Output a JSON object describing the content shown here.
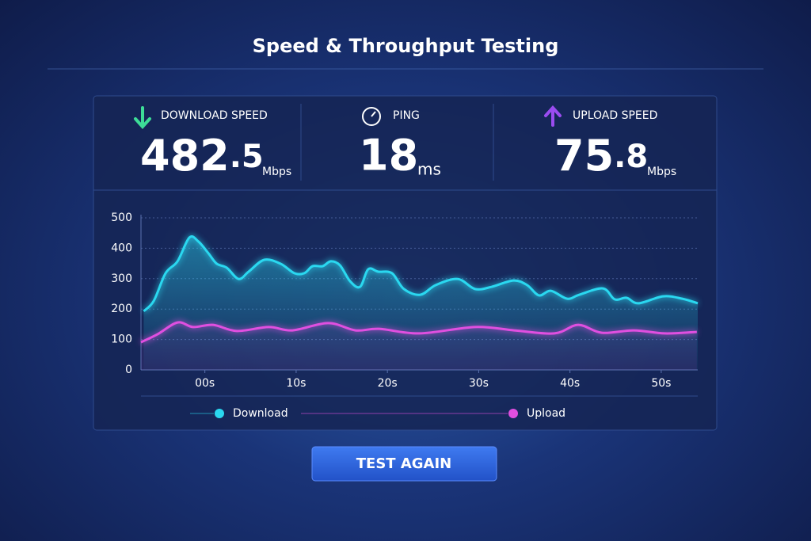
{
  "header": {
    "title": "Speed & Throughput Testing"
  },
  "stats": [
    {
      "label": "DOWNLOAD SPEED",
      "value": "482",
      "fraction": ".5",
      "unit": "Mbps"
    },
    {
      "label": "PING",
      "value": "18",
      "unit": "ms"
    },
    {
      "label": "UPLOAD SPEED",
      "value": "75",
      "fraction": ".8",
      "unit": "Mbps"
    }
  ],
  "chart_data": {
    "type": "line",
    "xlim": [
      -7,
      54
    ],
    "xticks": [
      {
        "value": 0,
        "label": "00s"
      },
      {
        "value": 10,
        "label": "10s"
      },
      {
        "value": 20,
        "label": "20s"
      },
      {
        "value": 30,
        "label": "30s"
      },
      {
        "value": 40,
        "label": "40s"
      },
      {
        "value": 50,
        "label": "50s"
      }
    ],
    "ylim": [
      0,
      500
    ],
    "yticks": [
      0,
      100,
      200,
      300,
      400,
      500
    ],
    "grid": true,
    "series": [
      {
        "name": "Download",
        "color": "#2ad8f0",
        "x": [
          -6.7,
          -5.6,
          -4.3,
          -3.0,
          -1.7,
          -0.7,
          0.4,
          1.3,
          2.4,
          3.7,
          4.8,
          6.5,
          8.3,
          9.8,
          10.9,
          11.8,
          12.9,
          13.8,
          14.8,
          15.9,
          17.0,
          17.9,
          19.0,
          20.5,
          21.8,
          23.6,
          25.3,
          27.7,
          29.6,
          31.4,
          33.8,
          35.3,
          36.6,
          37.9,
          39.7,
          41.0,
          43.6,
          44.9,
          46.2,
          47.5,
          50.2,
          52.3,
          54.0
        ],
        "values": [
          193,
          227,
          318,
          357,
          435,
          422,
          383,
          349,
          336,
          299,
          323,
          362,
          349,
          318,
          318,
          341,
          341,
          357,
          344,
          292,
          273,
          331,
          323,
          318,
          266,
          247,
          279,
          299,
          266,
          273,
          294,
          279,
          245,
          260,
          234,
          247,
          268,
          232,
          237,
          219,
          242,
          234,
          219
        ]
      },
      {
        "name": "Upload",
        "color": "#e04fe0",
        "x": [
          -7.0,
          -5.2,
          -3.0,
          -1.3,
          0.9,
          3.5,
          7.0,
          9.6,
          13.5,
          16.5,
          19.1,
          23.5,
          29.6,
          33.9,
          38.3,
          40.9,
          43.5,
          47.0,
          50.4,
          53.9
        ],
        "values": [
          91,
          117,
          156,
          141,
          148,
          128,
          141,
          130,
          154,
          130,
          135,
          120,
          141,
          130,
          120,
          148,
          122,
          130,
          120,
          125
        ]
      }
    ]
  },
  "button": {
    "label": "TEST AGAIN"
  }
}
